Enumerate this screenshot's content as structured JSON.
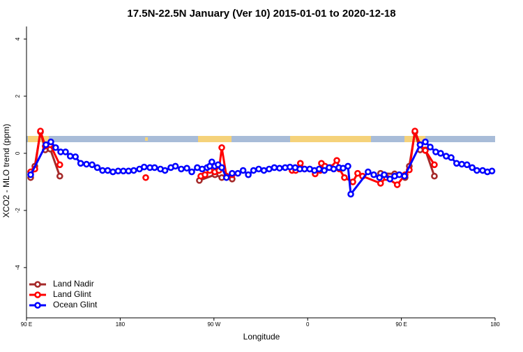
{
  "chart_data": {
    "type": "line",
    "title": "17.5N-22.5N January (Ver 10)   2015-01-01 to 2020-12-18",
    "x_label": "Longitude",
    "y_label": "XCO2 - MLO trend (ppm)",
    "xlim": [
      90,
      540
    ],
    "ylim": [
      -5.76,
      4.44
    ],
    "xticks": [
      {
        "value": 90,
        "label": "90 E"
      },
      180,
      {
        "value": 270,
        "label": "90 W"
      },
      {
        "value": 360,
        "label": "0"
      },
      {
        "value": 450,
        "label": "90 E"
      },
      {
        "value": 540,
        "label": "180"
      }
    ],
    "yticks": [
      -4,
      -2,
      0,
      2,
      4
    ],
    "legend": "bottom-left",
    "series": [
      {
        "name": "Land Nadir",
        "color": "#a52a2a",
        "x": [
          94,
          98,
          103.4,
          108,
          112.8,
          122,
          null,
          256,
          271,
          277.5,
          287.5,
          null,
          430,
          443.5,
          453.6,
          457.6,
          463,
          468,
          473,
          481.7
        ],
        "values": [
          -0.85,
          -0.45,
          0.75,
          0.12,
          0.15,
          -0.8,
          null,
          -0.95,
          -0.75,
          -0.85,
          -0.9,
          null,
          -0.7,
          -0.72,
          -0.85,
          -0.45,
          0.75,
          0.12,
          0.12,
          -0.8
        ]
      },
      {
        "name": "Land Glint",
        "color": "#ff0000",
        "x": [
          94,
          98,
          103.4,
          108,
          112.8,
          122,
          null,
          204.5,
          null,
          257.4,
          261.4,
          266,
          270.8,
          274.8,
          277.5,
          282,
          287.5,
          null,
          345,
          348.5,
          353,
          357,
          362,
          367.2,
          372,
          373.2,
          376.6,
          382,
          388,
          390.6,
          395.3,
          403.4,
          408,
          412.7,
          430,
          435.5,
          446,
          453.6,
          457.6,
          463,
          468,
          473,
          481.7
        ],
        "values": [
          -0.65,
          -0.55,
          0.78,
          0.25,
          0.3,
          -0.4,
          null,
          -0.85,
          null,
          -0.8,
          -0.75,
          -0.6,
          -0.65,
          -0.6,
          0.2,
          -0.8,
          -0.75,
          null,
          -0.6,
          -0.6,
          -0.35,
          -0.55,
          -0.55,
          -0.72,
          -0.6,
          -0.35,
          -0.45,
          -0.5,
          -0.25,
          -0.55,
          -0.85,
          -1.0,
          -0.7,
          -0.8,
          -1.05,
          -0.85,
          -1.1,
          -0.75,
          -0.58,
          0.78,
          0.3,
          0.1,
          -0.4
        ]
      },
      {
        "name": "Ocean Glint",
        "color": "#0000ff",
        "x": [
          94,
          108.7,
          113.4,
          118,
          122.8,
          127.5,
          132,
          137,
          142,
          147.6,
          153,
          158,
          163,
          168,
          173,
          178,
          183,
          188,
          193,
          198.5,
          203,
          208.5,
          213,
          218.6,
          223,
          228.6,
          233,
          238.6,
          244,
          248.7,
          254,
          258.7,
          263.4,
          266,
          268,
          270.8,
          274,
          277.5,
          282,
          287.5,
          293,
          298,
          303,
          308,
          313,
          318,
          323,
          328,
          333,
          338.4,
          343,
          348,
          352.5,
          357,
          362,
          366.5,
          371,
          376,
          380.6,
          385,
          390,
          394,
          398.7,
          401.4,
          418,
          423.5,
          429,
          433.5,
          439,
          443.5,
          448,
          453,
          468,
          473,
          477.7,
          483,
          487.7,
          493,
          497.8,
          503,
          508,
          513,
          518,
          522.5,
          528,
          532.6,
          537
        ],
        "values": [
          -0.75,
          0.3,
          0.4,
          0.2,
          0.05,
          0.05,
          -0.1,
          -0.12,
          -0.35,
          -0.38,
          -0.4,
          -0.5,
          -0.6,
          -0.6,
          -0.65,
          -0.62,
          -0.62,
          -0.62,
          -0.6,
          -0.55,
          -0.48,
          -0.5,
          -0.5,
          -0.55,
          -0.6,
          -0.5,
          -0.45,
          -0.55,
          -0.52,
          -0.65,
          -0.5,
          -0.55,
          -0.5,
          -0.45,
          -0.3,
          -0.45,
          -0.4,
          -0.5,
          -0.85,
          -0.7,
          -0.7,
          -0.6,
          -0.75,
          -0.6,
          -0.55,
          -0.6,
          -0.55,
          -0.5,
          -0.52,
          -0.5,
          -0.48,
          -0.5,
          -0.55,
          -0.55,
          -0.55,
          -0.6,
          -0.55,
          -0.6,
          -0.5,
          -0.55,
          -0.5,
          -0.52,
          -0.45,
          -1.43,
          -0.65,
          -0.75,
          -0.85,
          -0.75,
          -0.9,
          -0.8,
          -0.75,
          -0.8,
          0.3,
          0.4,
          0.22,
          0.05,
          0.0,
          -0.1,
          -0.15,
          -0.35,
          -0.38,
          -0.4,
          -0.5,
          -0.6,
          -0.6,
          -0.65,
          -0.62
        ]
      }
    ]
  }
}
